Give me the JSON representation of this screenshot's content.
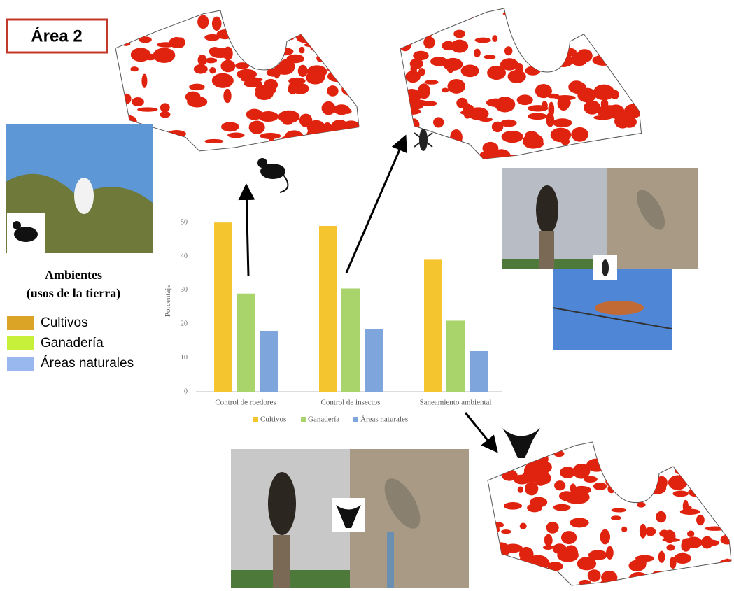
{
  "header": {
    "title": "Área 2"
  },
  "legend_panel": {
    "title_lines": [
      "Ambientes",
      "(usos de la tierra)"
    ],
    "items": [
      {
        "label": "Cultivos",
        "color": "#dba427"
      },
      {
        "label": "Ganadería",
        "color": "#c7f03a"
      },
      {
        "label": "Áreas naturales",
        "color": "#9ab8f0"
      }
    ]
  },
  "chart_data": {
    "type": "bar",
    "y_label": "Porcentaje",
    "categories": [
      "Control de roedores",
      "Control de insectos",
      "Saneamiento ambiental"
    ],
    "series": [
      {
        "name": "Cultivos",
        "color": "#f5c530",
        "values": [
          50,
          49,
          39
        ]
      },
      {
        "name": "Ganadería",
        "color": "#a9d46b",
        "values": [
          29,
          30.5,
          21
        ]
      },
      {
        "name": "Áreas naturales",
        "color": "#7ea6dc",
        "values": [
          18,
          18.5,
          12
        ]
      }
    ],
    "ylim": [
      0,
      55
    ],
    "yticks": [
      0,
      10,
      20,
      30,
      40,
      50
    ],
    "grid": false
  }
}
